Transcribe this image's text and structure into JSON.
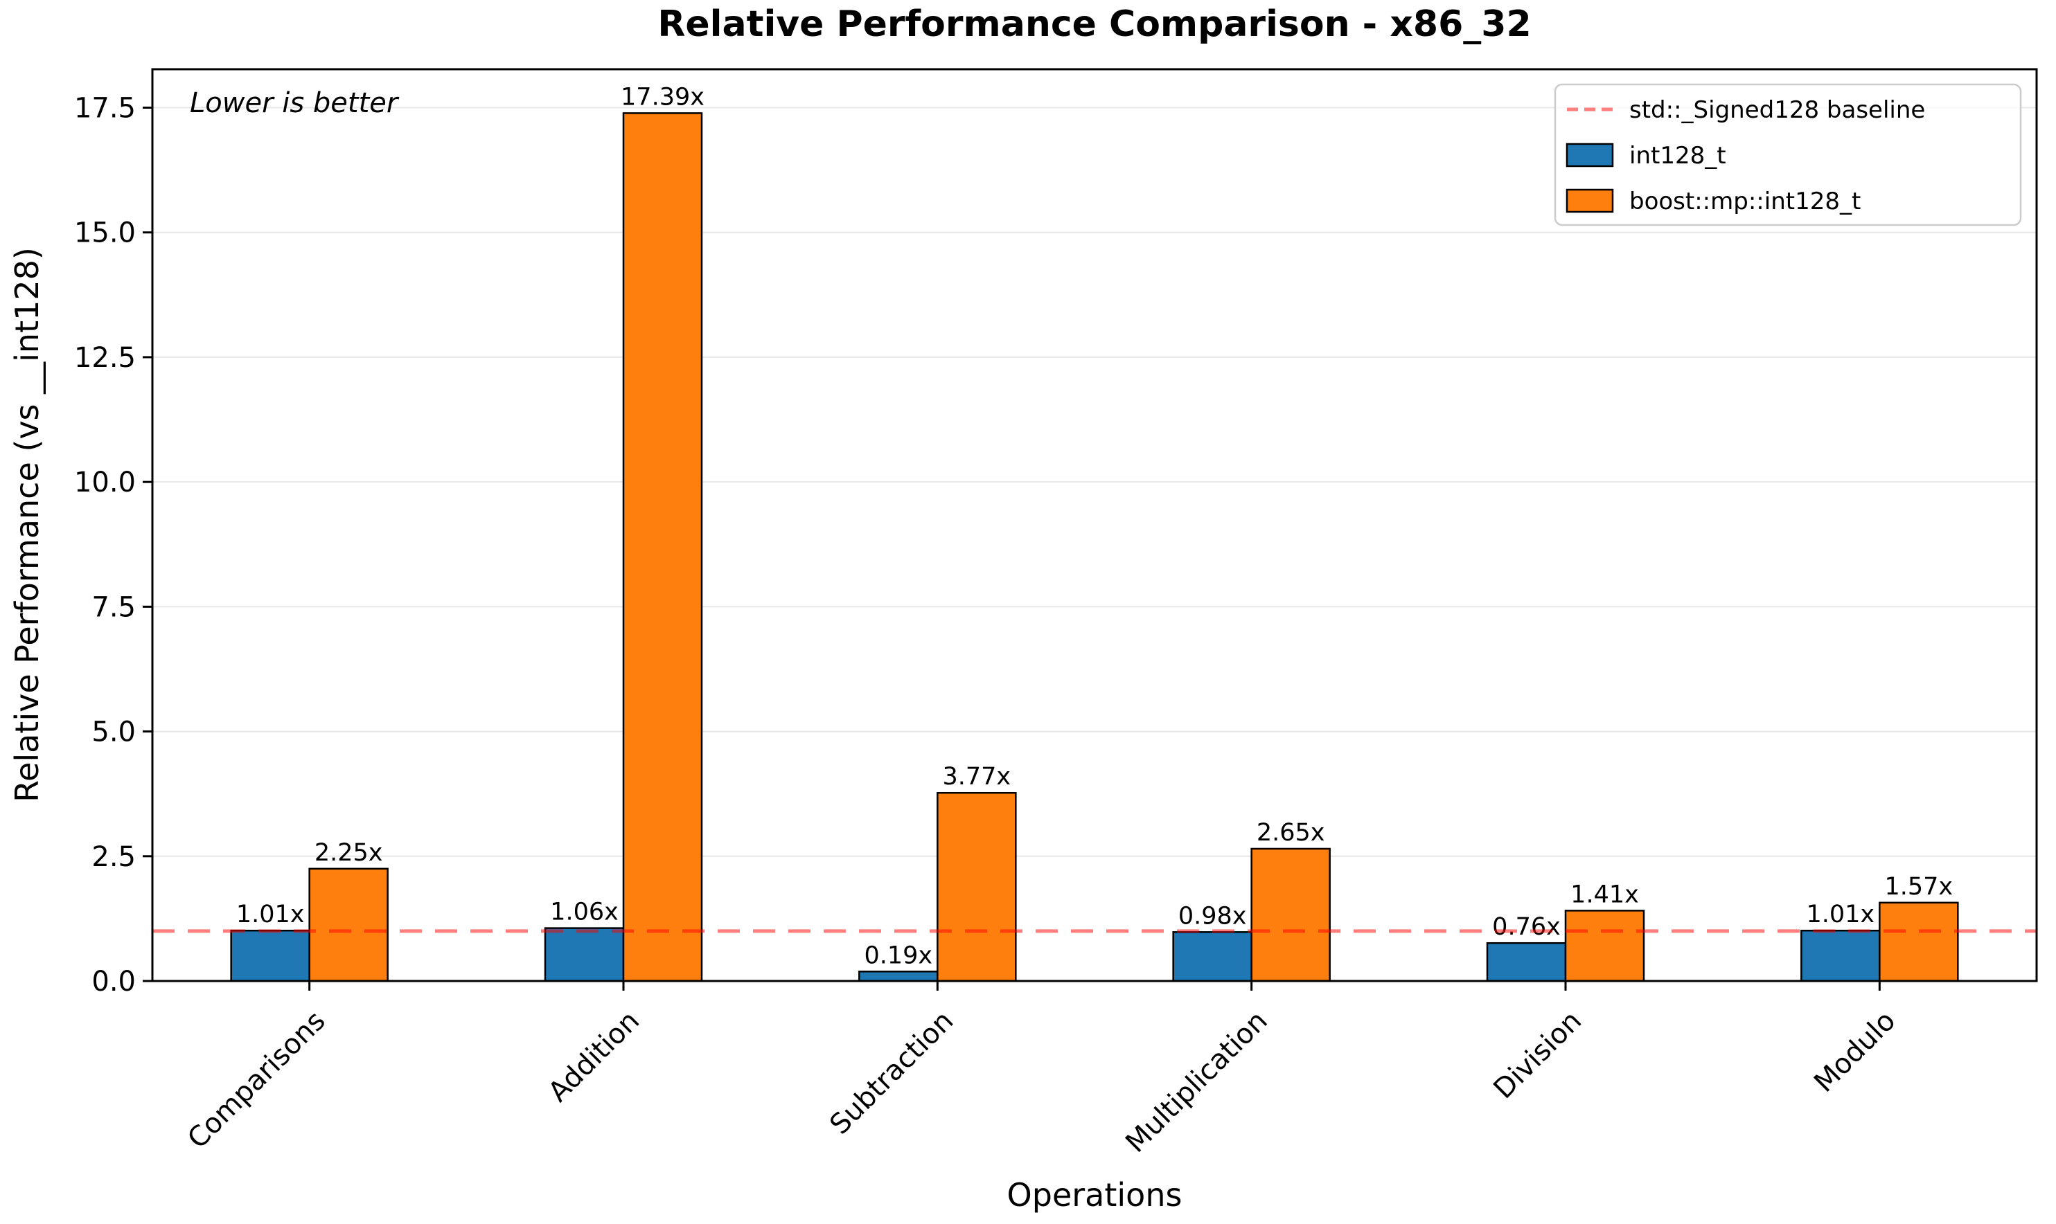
{
  "chart_data": {
    "type": "bar",
    "title": "Relative Performance Comparison - x86_32",
    "xlabel": "Operations",
    "ylabel": "Relative Performance (vs __int128)",
    "annotation": "Lower is better",
    "categories": [
      "Comparisons",
      "Addition",
      "Subtraction",
      "Multiplication",
      "Division",
      "Modulo"
    ],
    "series": [
      {
        "name": "int128_t",
        "color": "#1f77b4",
        "values": [
          1.01,
          1.06,
          0.19,
          0.98,
          0.76,
          1.01
        ],
        "labels": [
          "1.01x",
          "1.06x",
          "0.19x",
          "0.98x",
          "0.76x",
          "1.01x"
        ]
      },
      {
        "name": "boost::mp::int128_t",
        "color": "#ff7f0e",
        "values": [
          2.25,
          17.39,
          3.77,
          2.65,
          1.41,
          1.57
        ],
        "labels": [
          "2.25x",
          "17.39x",
          "3.77x",
          "2.65x",
          "1.41x",
          "1.57x"
        ]
      }
    ],
    "baseline": {
      "label": "std::_Signed128 baseline",
      "value": 1.0,
      "color": "#ff0000",
      "opacity": 0.5
    },
    "yticks": {
      "values": [
        0.0,
        2.5,
        5.0,
        7.5,
        10.0,
        12.5,
        15.0,
        17.5
      ],
      "labels": [
        "0.0",
        "2.5",
        "5.0",
        "7.5",
        "10.0",
        "12.5",
        "15.0",
        "17.5"
      ]
    },
    "ylim": [
      0,
      18.27
    ],
    "grid": true,
    "legend_position": "upper right",
    "bar_edge_color": "#000000",
    "grid_color": "#e7e7e7"
  }
}
